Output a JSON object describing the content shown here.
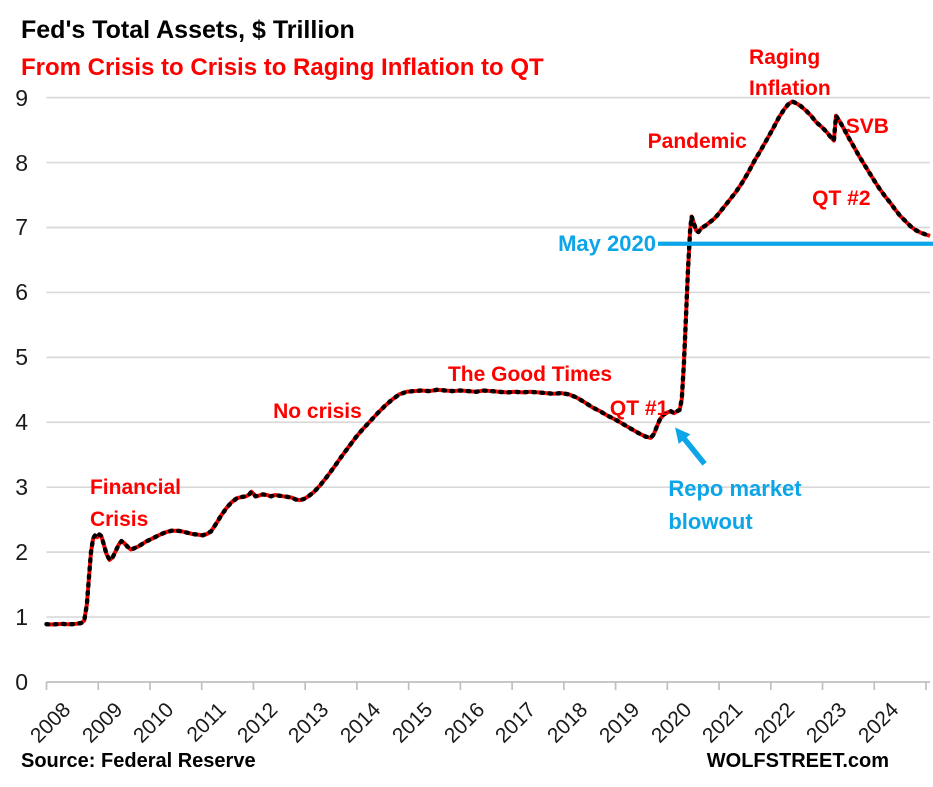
{
  "footer": {
    "source": "Source: Federal Reserve",
    "brand": "WOLFSTREET.com"
  },
  "colors": {
    "red": "#ff0000",
    "black": "#000000",
    "blue": "#0ca6e8",
    "grid": "#d9d9d9",
    "axis": "#bfbfbf",
    "tick_text": "#1a1a1a"
  },
  "chart_data": {
    "type": "line",
    "title": "Fed's Total Assets, $ Trillion",
    "subtitle": "From Crisis to Crisis to Raging Inflation to QT",
    "xlabel": "",
    "ylabel": "$ Trillion",
    "ylim": [
      0,
      9
    ],
    "x_range": [
      2008,
      2025.15
    ],
    "grid": "horizontal",
    "legend": "none",
    "yticks": [
      0,
      1,
      2,
      3,
      4,
      5,
      6,
      7,
      8,
      9
    ],
    "xticks": [
      2008,
      2009,
      2010,
      2011,
      2012,
      2013,
      2014,
      2015,
      2016,
      2017,
      2018,
      2019,
      2020,
      2021,
      2022,
      2023,
      2024
    ],
    "series": [
      {
        "name": "Fed total assets ($ trillion)",
        "style": "red line with black dashes",
        "points": [
          [
            2008.0,
            0.89
          ],
          [
            2008.1,
            0.885
          ],
          [
            2008.2,
            0.89
          ],
          [
            2008.3,
            0.895
          ],
          [
            2008.4,
            0.89
          ],
          [
            2008.5,
            0.89
          ],
          [
            2008.6,
            0.9
          ],
          [
            2008.68,
            0.91
          ],
          [
            2008.73,
            0.95
          ],
          [
            2008.78,
            1.2
          ],
          [
            2008.82,
            1.6
          ],
          [
            2008.86,
            2.0
          ],
          [
            2008.9,
            2.21
          ],
          [
            2008.94,
            2.26
          ],
          [
            2008.98,
            2.23
          ],
          [
            2009.02,
            2.27
          ],
          [
            2009.06,
            2.25
          ],
          [
            2009.1,
            2.14
          ],
          [
            2009.16,
            1.97
          ],
          [
            2009.22,
            1.88
          ],
          [
            2009.28,
            1.92
          ],
          [
            2009.34,
            2.02
          ],
          [
            2009.4,
            2.12
          ],
          [
            2009.45,
            2.17
          ],
          [
            2009.5,
            2.14
          ],
          [
            2009.57,
            2.08
          ],
          [
            2009.63,
            2.04
          ],
          [
            2009.7,
            2.06
          ],
          [
            2009.78,
            2.09
          ],
          [
            2009.86,
            2.13
          ],
          [
            2009.94,
            2.17
          ],
          [
            2010.02,
            2.2
          ],
          [
            2010.12,
            2.24
          ],
          [
            2010.22,
            2.28
          ],
          [
            2010.32,
            2.31
          ],
          [
            2010.42,
            2.33
          ],
          [
            2010.52,
            2.33
          ],
          [
            2010.62,
            2.32
          ],
          [
            2010.72,
            2.3
          ],
          [
            2010.82,
            2.28
          ],
          [
            2010.92,
            2.27
          ],
          [
            2011.02,
            2.26
          ],
          [
            2011.1,
            2.28
          ],
          [
            2011.18,
            2.32
          ],
          [
            2011.28,
            2.44
          ],
          [
            2011.38,
            2.57
          ],
          [
            2011.48,
            2.68
          ],
          [
            2011.58,
            2.77
          ],
          [
            2011.68,
            2.83
          ],
          [
            2011.78,
            2.85
          ],
          [
            2011.86,
            2.86
          ],
          [
            2011.92,
            2.89
          ],
          [
            2011.96,
            2.93
          ],
          [
            2012.0,
            2.9
          ],
          [
            2012.04,
            2.86
          ],
          [
            2012.1,
            2.87
          ],
          [
            2012.18,
            2.89
          ],
          [
            2012.26,
            2.88
          ],
          [
            2012.34,
            2.86
          ],
          [
            2012.42,
            2.88
          ],
          [
            2012.5,
            2.87
          ],
          [
            2012.58,
            2.86
          ],
          [
            2012.66,
            2.85
          ],
          [
            2012.74,
            2.84
          ],
          [
            2012.82,
            2.81
          ],
          [
            2012.9,
            2.8
          ],
          [
            2012.98,
            2.82
          ],
          [
            2013.06,
            2.86
          ],
          [
            2013.16,
            2.92
          ],
          [
            2013.28,
            3.02
          ],
          [
            2013.42,
            3.16
          ],
          [
            2013.56,
            3.31
          ],
          [
            2013.7,
            3.47
          ],
          [
            2013.84,
            3.62
          ],
          [
            2013.98,
            3.77
          ],
          [
            2014.12,
            3.9
          ],
          [
            2014.26,
            4.02
          ],
          [
            2014.4,
            4.14
          ],
          [
            2014.54,
            4.25
          ],
          [
            2014.68,
            4.35
          ],
          [
            2014.82,
            4.43
          ],
          [
            2014.96,
            4.47
          ],
          [
            2015.1,
            4.48
          ],
          [
            2015.25,
            4.49
          ],
          [
            2015.4,
            4.48
          ],
          [
            2015.55,
            4.5
          ],
          [
            2015.7,
            4.49
          ],
          [
            2015.85,
            4.48
          ],
          [
            2016.0,
            4.49
          ],
          [
            2016.15,
            4.48
          ],
          [
            2016.3,
            4.47
          ],
          [
            2016.45,
            4.49
          ],
          [
            2016.6,
            4.48
          ],
          [
            2016.75,
            4.47
          ],
          [
            2016.9,
            4.46
          ],
          [
            2017.05,
            4.47
          ],
          [
            2017.2,
            4.46
          ],
          [
            2017.35,
            4.47
          ],
          [
            2017.5,
            4.46
          ],
          [
            2017.65,
            4.45
          ],
          [
            2017.8,
            4.44
          ],
          [
            2017.95,
            4.45
          ],
          [
            2018.1,
            4.43
          ],
          [
            2018.25,
            4.38
          ],
          [
            2018.4,
            4.31
          ],
          [
            2018.55,
            4.23
          ],
          [
            2018.7,
            4.17
          ],
          [
            2018.85,
            4.1
          ],
          [
            2019.0,
            4.04
          ],
          [
            2019.15,
            3.97
          ],
          [
            2019.3,
            3.9
          ],
          [
            2019.45,
            3.83
          ],
          [
            2019.58,
            3.78
          ],
          [
            2019.68,
            3.76
          ],
          [
            2019.74,
            3.82
          ],
          [
            2019.8,
            3.94
          ],
          [
            2019.86,
            4.05
          ],
          [
            2019.93,
            4.12
          ],
          [
            2020.0,
            4.15
          ],
          [
            2020.07,
            4.17
          ],
          [
            2020.13,
            4.14
          ],
          [
            2020.19,
            4.17
          ],
          [
            2020.24,
            4.19
          ],
          [
            2020.28,
            4.36
          ],
          [
            2020.32,
            4.9
          ],
          [
            2020.36,
            5.6
          ],
          [
            2020.4,
            6.35
          ],
          [
            2020.44,
            6.95
          ],
          [
            2020.47,
            7.17
          ],
          [
            2020.52,
            7.05
          ],
          [
            2020.56,
            6.95
          ],
          [
            2020.6,
            6.93
          ],
          [
            2020.66,
            6.99
          ],
          [
            2020.74,
            7.03
          ],
          [
            2020.82,
            7.08
          ],
          [
            2020.9,
            7.13
          ],
          [
            2020.98,
            7.2
          ],
          [
            2021.08,
            7.3
          ],
          [
            2021.2,
            7.42
          ],
          [
            2021.32,
            7.54
          ],
          [
            2021.44,
            7.68
          ],
          [
            2021.56,
            7.84
          ],
          [
            2021.68,
            8.02
          ],
          [
            2021.8,
            8.18
          ],
          [
            2021.92,
            8.35
          ],
          [
            2022.04,
            8.52
          ],
          [
            2022.16,
            8.7
          ],
          [
            2022.26,
            8.82
          ],
          [
            2022.34,
            8.9
          ],
          [
            2022.42,
            8.94
          ],
          [
            2022.5,
            8.91
          ],
          [
            2022.58,
            8.87
          ],
          [
            2022.68,
            8.8
          ],
          [
            2022.78,
            8.72
          ],
          [
            2022.88,
            8.62
          ],
          [
            2022.98,
            8.55
          ],
          [
            2023.08,
            8.47
          ],
          [
            2023.16,
            8.39
          ],
          [
            2023.22,
            8.34
          ],
          [
            2023.26,
            8.72
          ],
          [
            2023.32,
            8.65
          ],
          [
            2023.4,
            8.54
          ],
          [
            2023.5,
            8.39
          ],
          [
            2023.6,
            8.25
          ],
          [
            2023.7,
            8.11
          ],
          [
            2023.8,
            7.98
          ],
          [
            2023.9,
            7.85
          ],
          [
            2024.0,
            7.72
          ],
          [
            2024.1,
            7.6
          ],
          [
            2024.2,
            7.49
          ],
          [
            2024.3,
            7.39
          ],
          [
            2024.4,
            7.28
          ],
          [
            2024.5,
            7.18
          ],
          [
            2024.6,
            7.1
          ],
          [
            2024.7,
            7.02
          ],
          [
            2024.8,
            6.96
          ],
          [
            2024.9,
            6.92
          ],
          [
            2025.0,
            6.89
          ],
          [
            2025.08,
            6.87
          ]
        ]
      }
    ],
    "reference_line": {
      "label": "May 2020",
      "value": 6.75,
      "x_start": 2019.82,
      "x_end": 2025.14,
      "color_key": "blue"
    },
    "arrow": {
      "note": "points from 'Repo market blowout' label to the late-2019 dip",
      "from_x": 2020.72,
      "from_y": 3.36,
      "to_x": 2020.15,
      "to_y": 3.92,
      "color_key": "blue"
    },
    "annotations": [
      {
        "id": "financial-crisis",
        "lines": [
          "Financial",
          "Crisis"
        ],
        "color": "red",
        "x": 2008.84,
        "y": 3.23,
        "align": "left",
        "valign": "top"
      },
      {
        "id": "no-crisis",
        "lines": [
          "No crisis"
        ],
        "color": "red",
        "x": 2012.38,
        "y": 4.4,
        "align": "left",
        "valign": "top"
      },
      {
        "id": "good-times",
        "lines": [
          "The Good Times"
        ],
        "color": "red",
        "x": 2015.76,
        "y": 4.97,
        "align": "left",
        "valign": "top"
      },
      {
        "id": "qt-1",
        "lines": [
          "QT #1"
        ],
        "color": "red",
        "x": 2018.89,
        "y": 4.45,
        "align": "left",
        "valign": "top"
      },
      {
        "id": "pandemic",
        "lines": [
          "Pandemic"
        ],
        "color": "red",
        "x": 2019.62,
        "y": 8.56,
        "align": "left",
        "valign": "top"
      },
      {
        "id": "raging-inflation",
        "lines": [
          "Raging",
          "Inflation"
        ],
        "color": "red",
        "x": 2021.58,
        "y": 9.86,
        "align": "left",
        "valign": "top"
      },
      {
        "id": "svb",
        "lines": [
          "SVB"
        ],
        "color": "red",
        "x": 2023.45,
        "y": 8.8,
        "align": "left",
        "valign": "top"
      },
      {
        "id": "qt-2",
        "lines": [
          "QT #2"
        ],
        "color": "red",
        "x": 2022.8,
        "y": 7.69,
        "align": "left",
        "valign": "top"
      },
      {
        "id": "may-2020",
        "lines": [
          "May 2020"
        ],
        "color": "blue",
        "x": 2019.78,
        "y": 6.75,
        "align": "right",
        "valign": "middle"
      },
      {
        "id": "repo-blowout",
        "lines": [
          "Repo market",
          "blowout"
        ],
        "color": "blue",
        "x": 2020.02,
        "y": 3.23,
        "align": "left",
        "valign": "top"
      }
    ]
  }
}
